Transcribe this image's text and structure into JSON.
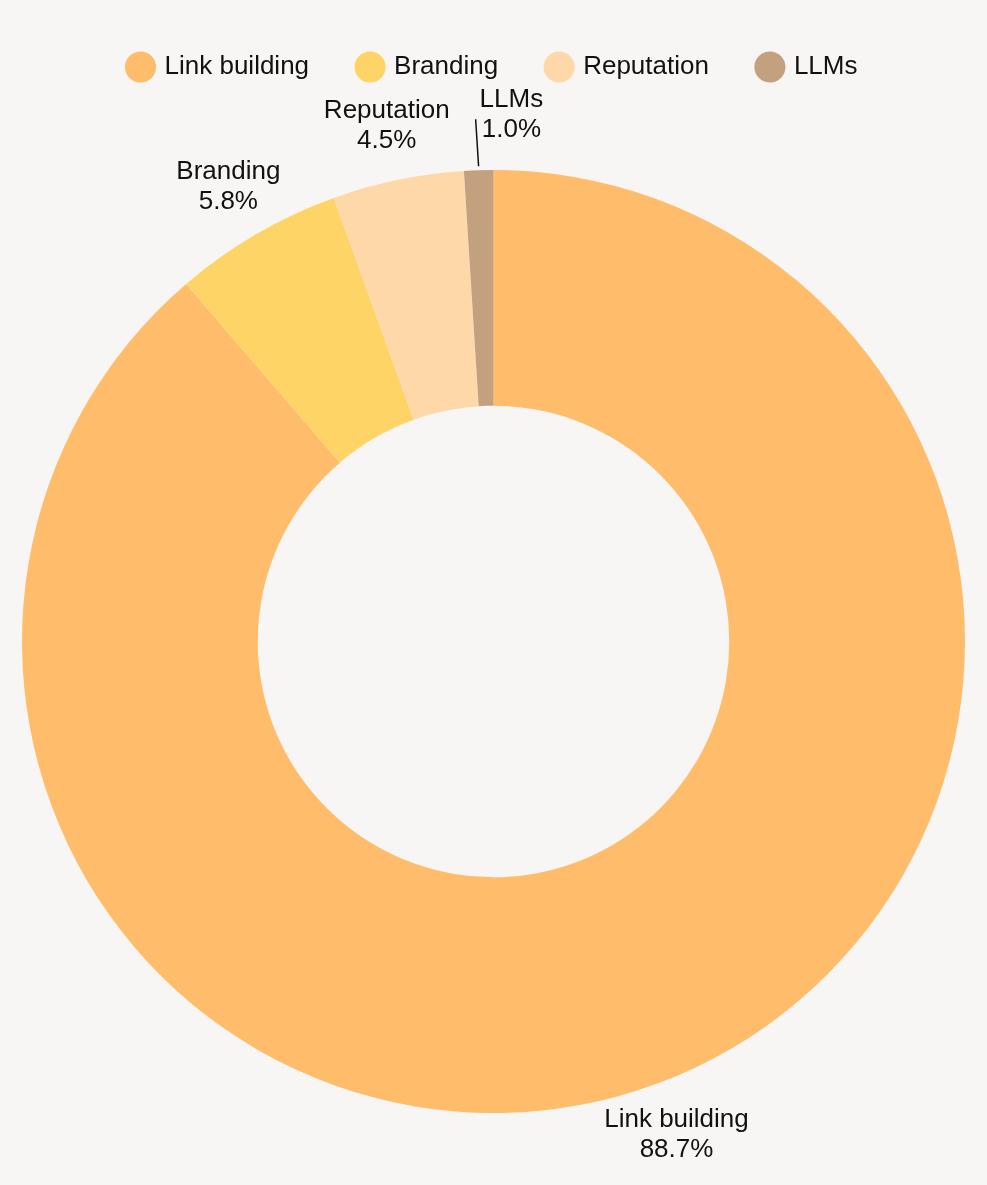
{
  "chart_data": {
    "type": "donut",
    "categories": [
      "Link building",
      "Branding",
      "Reputation",
      "LLMs"
    ],
    "values": [
      88.7,
      5.8,
      4.5,
      1.0
    ],
    "colors": [
      "#ffbc6a",
      "#fed466",
      "#ffd8aa",
      "#c4a17e"
    ],
    "value_labels": [
      "88.7%",
      "5.8%",
      "4.5%",
      "1.0%"
    ],
    "legend": "top"
  }
}
